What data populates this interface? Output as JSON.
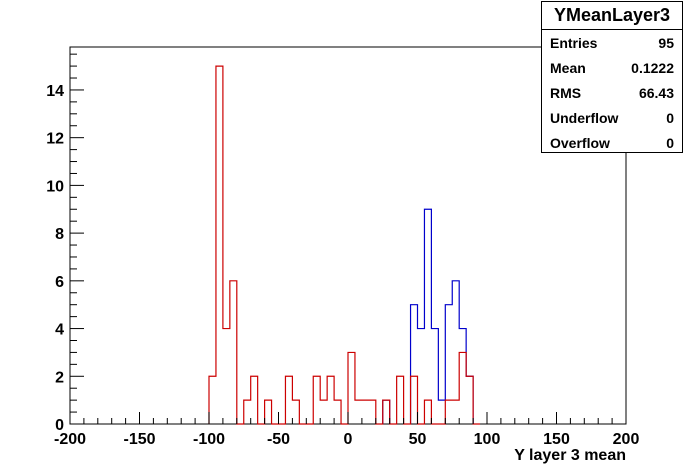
{
  "chart_data": {
    "type": "histogram",
    "xlabel": "Y layer 3 mean",
    "xlim": [
      -200,
      200
    ],
    "ylim": [
      0,
      15.8
    ],
    "x_ticks": [
      -200,
      -150,
      -100,
      -50,
      0,
      50,
      100,
      150,
      200
    ],
    "y_ticks": [
      0,
      2,
      4,
      6,
      8,
      10,
      12,
      14
    ],
    "bin_width": 5,
    "series": [
      {
        "color": "#0000cc",
        "bins": [
          {
            "x0": 25,
            "count": 1
          },
          {
            "x0": 45,
            "count": 5
          },
          {
            "x0": 50,
            "count": 4
          },
          {
            "x0": 55,
            "count": 9
          },
          {
            "x0": 60,
            "count": 4
          },
          {
            "x0": 65,
            "count": 1
          },
          {
            "x0": 70,
            "count": 5
          },
          {
            "x0": 75,
            "count": 6
          },
          {
            "x0": 80,
            "count": 4
          },
          {
            "x0": 85,
            "count": 2
          }
        ]
      },
      {
        "color": "#cc0000",
        "bins": [
          {
            "x0": -100,
            "count": 2
          },
          {
            "x0": -95,
            "count": 15
          },
          {
            "x0": -90,
            "count": 4
          },
          {
            "x0": -85,
            "count": 6
          },
          {
            "x0": -80,
            "count": 0
          },
          {
            "x0": -75,
            "count": 1
          },
          {
            "x0": -70,
            "count": 2
          },
          {
            "x0": -65,
            "count": 0
          },
          {
            "x0": -60,
            "count": 1
          },
          {
            "x0": -55,
            "count": 0
          },
          {
            "x0": -50,
            "count": 0
          },
          {
            "x0": -45,
            "count": 2
          },
          {
            "x0": -40,
            "count": 1
          },
          {
            "x0": -35,
            "count": 0
          },
          {
            "x0": -30,
            "count": 0
          },
          {
            "x0": -25,
            "count": 2
          },
          {
            "x0": -20,
            "count": 1
          },
          {
            "x0": -15,
            "count": 2
          },
          {
            "x0": -10,
            "count": 1
          },
          {
            "x0": -5,
            "count": 0
          },
          {
            "x0": 0,
            "count": 3
          },
          {
            "x0": 5,
            "count": 1
          },
          {
            "x0": 10,
            "count": 1
          },
          {
            "x0": 15,
            "count": 1
          },
          {
            "x0": 20,
            "count": 0
          },
          {
            "x0": 25,
            "count": 1
          },
          {
            "x0": 30,
            "count": 0
          },
          {
            "x0": 35,
            "count": 2
          },
          {
            "x0": 40,
            "count": 0
          },
          {
            "x0": 45,
            "count": 2
          },
          {
            "x0": 50,
            "count": 0
          },
          {
            "x0": 55,
            "count": 1
          },
          {
            "x0": 60,
            "count": 0
          },
          {
            "x0": 65,
            "count": 0
          },
          {
            "x0": 70,
            "count": 1
          },
          {
            "x0": 75,
            "count": 1
          },
          {
            "x0": 80,
            "count": 3
          },
          {
            "x0": 85,
            "count": 2
          },
          {
            "x0": 90,
            "count": 0
          }
        ]
      }
    ]
  },
  "stats": {
    "title": "YMeanLayer3",
    "rows": [
      {
        "label": "Entries",
        "value": "95"
      },
      {
        "label": "Mean",
        "value": "0.1222"
      },
      {
        "label": "RMS",
        "value": "66.43"
      },
      {
        "label": "Underflow",
        "value": "0"
      },
      {
        "label": "Overflow",
        "value": "0"
      }
    ]
  }
}
